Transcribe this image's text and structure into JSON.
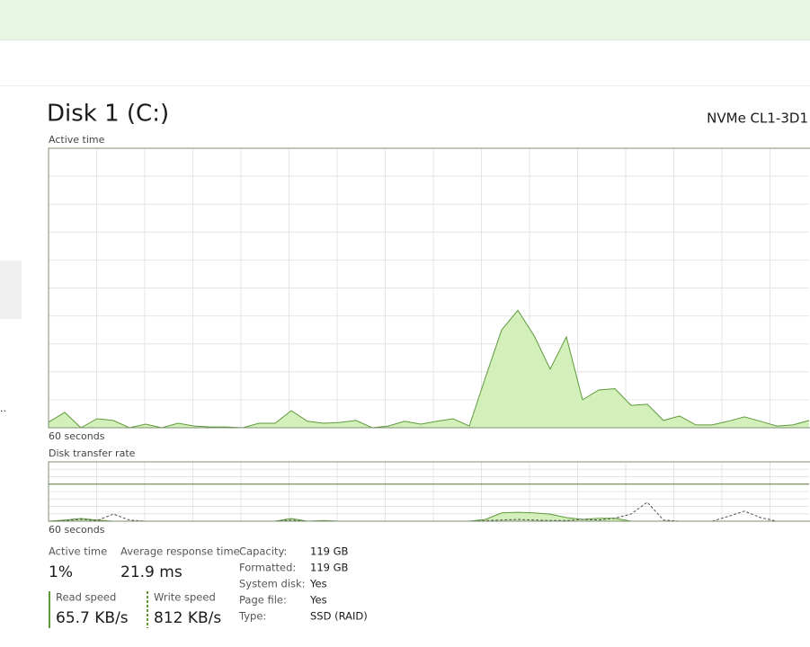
{
  "header": {
    "title": "Disk 1 (C:)",
    "model": "NVMe CL1-3D1"
  },
  "chart_data": [
    {
      "type": "area",
      "title": "Active time",
      "xlabel": "60 seconds",
      "ylim": [
        0,
        100
      ],
      "series": [
        {
          "color": "#5f9a3a",
          "fill": "#d3f0bb",
          "dash": false,
          "values": [
            2,
            5.5,
            0,
            3.2,
            2.6,
            0,
            1.3,
            0,
            1.6,
            0.6,
            0.3,
            0.3,
            0,
            1.6,
            1.6,
            6.1,
            2.3,
            1.6,
            1.9,
            2.6,
            0,
            0.6,
            2.3,
            1.3,
            2.3,
            3.2,
            0.6,
            18,
            35,
            42,
            33,
            21,
            32.5,
            10,
            13.5,
            14,
            8,
            8.4,
            2.6,
            4.2,
            1,
            1,
            2.3,
            3.9,
            2.3,
            0.6,
            1,
            2.6
          ]
        }
      ]
    },
    {
      "type": "area",
      "title": "Disk transfer rate",
      "xlabel": "60 seconds",
      "ylim": [
        0,
        100
      ],
      "series": [
        {
          "color": "#5f9a3a",
          "fill": "#d3f0bb",
          "dash": false,
          "values": [
            0,
            2,
            4.5,
            2,
            0,
            0,
            0,
            0,
            0,
            0,
            0,
            0,
            0,
            0,
            0,
            4.5,
            0,
            1,
            0,
            0,
            0,
            0,
            0,
            0,
            0,
            0,
            0,
            3,
            14,
            15,
            14,
            12,
            6,
            3,
            5,
            5,
            0,
            0,
            0,
            0,
            0,
            0,
            0,
            0,
            0,
            0,
            0,
            0
          ]
        },
        {
          "color": "#555555",
          "fill": "none",
          "dash": true,
          "values": [
            0,
            1,
            3,
            1,
            12,
            2,
            0,
            0,
            0,
            0,
            0,
            0,
            0,
            0,
            0,
            2,
            0,
            0,
            0,
            0,
            0,
            0,
            0,
            0,
            0,
            0,
            0,
            1,
            2,
            3,
            2,
            1,
            1,
            3,
            2,
            5,
            12,
            32,
            2,
            0,
            0,
            0,
            8,
            17,
            6,
            0,
            0,
            0
          ]
        }
      ]
    }
  ],
  "stats": [
    {
      "label": "Active time",
      "value": "1%"
    },
    {
      "label": "Average response time",
      "value": "21.9 ms"
    },
    {
      "label": "Read speed",
      "value": "65.7 KB/s"
    },
    {
      "label": "Write speed",
      "value": "812 KB/s"
    }
  ],
  "properties": [
    [
      "Capacity:",
      "119 GB"
    ],
    [
      "Formatted:",
      "119 GB"
    ],
    [
      "System disk:",
      "Yes"
    ],
    [
      "Page file:",
      "Yes"
    ],
    [
      "Type:",
      "SSD (RAID)"
    ]
  ]
}
